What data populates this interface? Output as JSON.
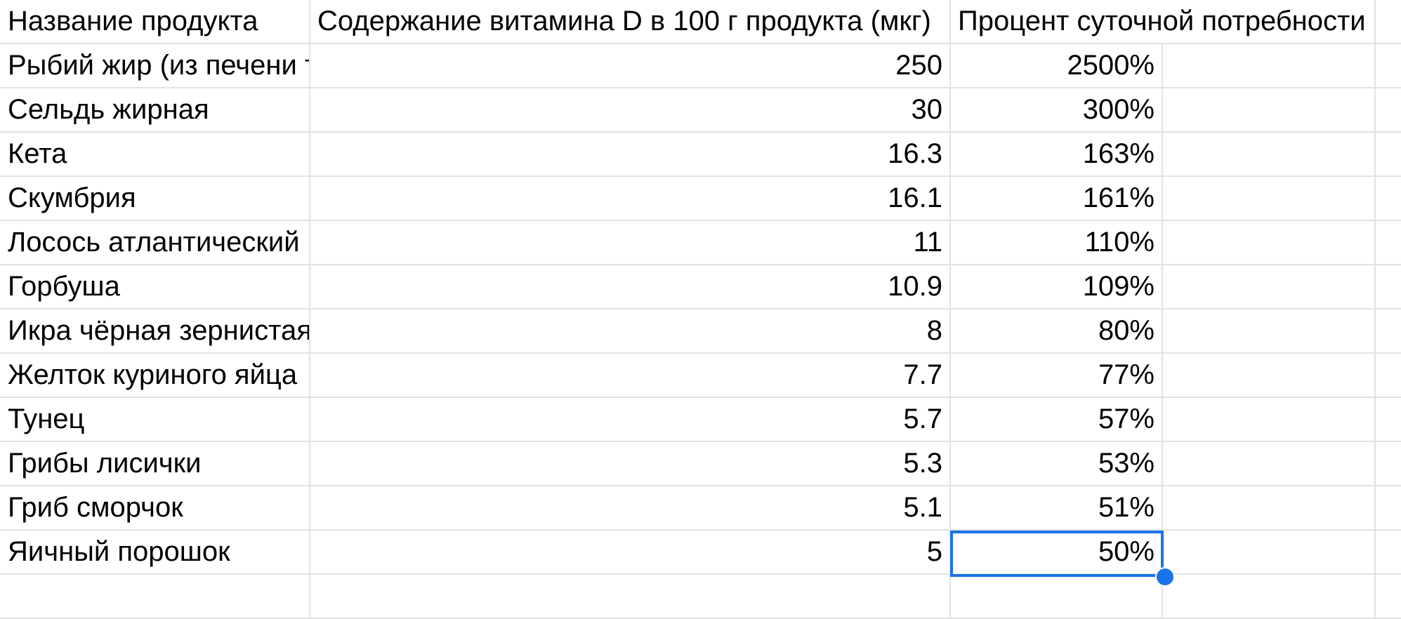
{
  "sheet": {
    "headers": {
      "name": "Название продукта",
      "vitamin_d": "Содержание витамина D в 100 г продукта (мкг)",
      "daily_percent": "Процент суточной потребности"
    },
    "rows": [
      {
        "name": "Рыбий жир (из печени трески)",
        "value": "250",
        "percent": "2500%"
      },
      {
        "name": "Сельдь жирная",
        "value": "30",
        "percent": "300%"
      },
      {
        "name": "Кета",
        "value": "16.3",
        "percent": "163%"
      },
      {
        "name": "Скумбрия",
        "value": "16.1",
        "percent": "161%"
      },
      {
        "name": "Лосось атлантический",
        "value": "11",
        "percent": "110%"
      },
      {
        "name": "Горбуша",
        "value": "10.9",
        "percent": "109%"
      },
      {
        "name": "Икра чёрная зернистая",
        "value": "8",
        "percent": "80%"
      },
      {
        "name": "Желток куриного яйца",
        "value": "7.7",
        "percent": "77%"
      },
      {
        "name": "Тунец",
        "value": "5.7",
        "percent": "57%"
      },
      {
        "name": "Грибы лисички",
        "value": "5.3",
        "percent": "53%"
      },
      {
        "name": "Гриб сморчок",
        "value": "5.1",
        "percent": "51%"
      },
      {
        "name": "Яичный порошок",
        "value": "5",
        "percent": "50%"
      }
    ],
    "selection_color": "#1a73e8"
  }
}
